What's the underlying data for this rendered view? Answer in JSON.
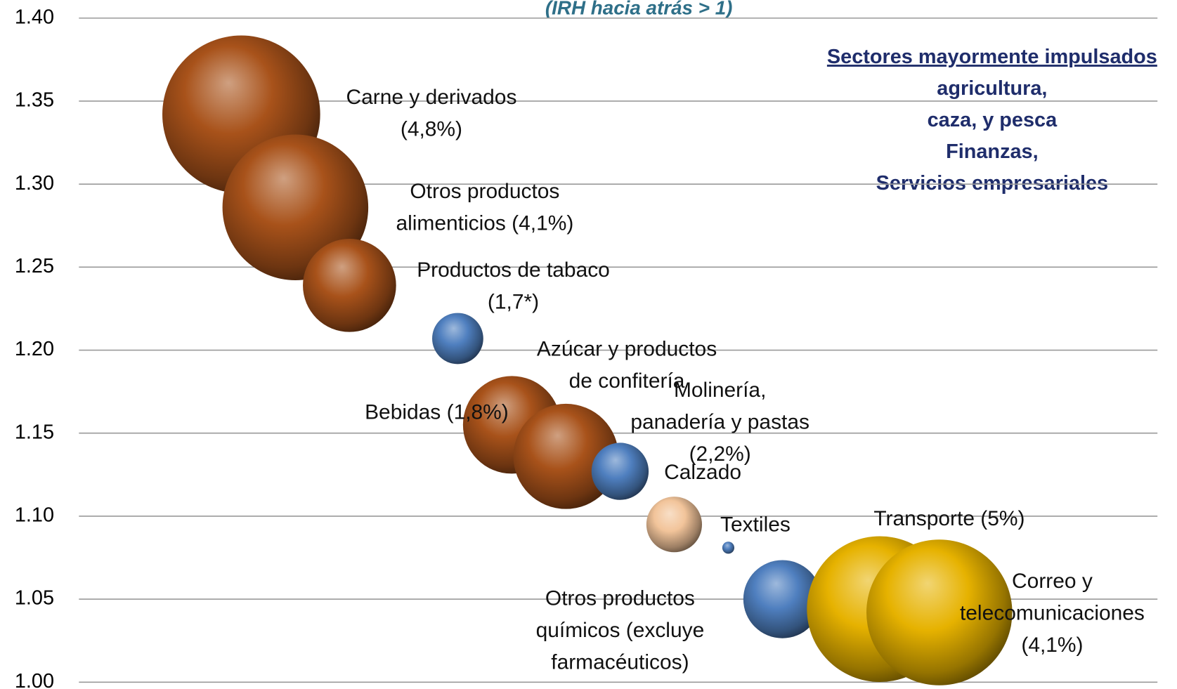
{
  "chart_data": {
    "type": "bubble",
    "subtitle": "(IRH hacia atrás >  1)",
    "annotation": {
      "heading": "Sectores mayormente impulsados",
      "lines": [
        "agricultura,",
        "caza, y pesca",
        "Finanzas,",
        "Servicios empresariales"
      ]
    },
    "xlim": [
      -2,
      18
    ],
    "ylim": [
      1.0,
      1.4
    ],
    "yticks": [
      {
        "value": 1.0,
        "label": "1.00"
      },
      {
        "value": 1.05,
        "label": "1.05"
      },
      {
        "value": 1.1,
        "label": "1.10"
      },
      {
        "value": 1.15,
        "label": "1.15"
      },
      {
        "value": 1.2,
        "label": "1.20"
      },
      {
        "value": 1.25,
        "label": "1.25"
      },
      {
        "value": 1.3,
        "label": "1.30"
      },
      {
        "value": 1.35,
        "label": "1.35"
      },
      {
        "value": 1.4,
        "label": "1.40"
      }
    ],
    "grid": true,
    "points": [
      {
        "label": [
          "Carne y derivados",
          "(4,8%)"
        ],
        "x": 1,
        "y": 1.342,
        "size": 105,
        "color": "#a8521a"
      },
      {
        "label": [
          "Otros productos",
          "alimenticios (4,1%)"
        ],
        "x": 2,
        "y": 1.286,
        "size": 97,
        "color": "#a8521a"
      },
      {
        "label": [
          "Productos de tabaco",
          "(1,7*)"
        ],
        "x": 3,
        "y": 1.239,
        "size": 62,
        "color": "#a8521a"
      },
      {
        "label": null,
        "x": 5,
        "y": 1.207,
        "size": 34,
        "color": "#4f7fbf"
      },
      {
        "label": [
          "Bebidas (1,8%)"
        ],
        "x": 6,
        "y": 1.155,
        "size": 65,
        "color": "#a8521a"
      },
      {
        "label": [
          "Azúcar y productos",
          "de confitería"
        ],
        "x": 7,
        "y": 1.136,
        "size": 70,
        "color": "#a8521a"
      },
      {
        "label": [
          "Molinería,",
          "panadería y pastas",
          "(2,2%)"
        ],
        "x": 8,
        "y": 1.127,
        "size": 38,
        "color": "#4f7fbf"
      },
      {
        "label": [
          "Calzado"
        ],
        "x": 9,
        "y": 1.095,
        "size": 37,
        "color": "#f2c49a"
      },
      {
        "label": [
          "Textiles"
        ],
        "x": 10,
        "y": 1.081,
        "size": 8,
        "color": "#4f7fbf"
      },
      {
        "label": [
          "Otros productos",
          "químicos (excluye",
          "farmacéuticos)"
        ],
        "x": 11,
        "y": 1.05,
        "size": 52,
        "color": "#4f7fbf"
      },
      {
        "label": [
          "Transporte (5%)"
        ],
        "x": 12.8,
        "y": 1.044,
        "size": 97,
        "color": "#e6b200"
      },
      {
        "label": [
          "Correo y",
          "telecomunicaciones",
          "(4,1%)"
        ],
        "x": 13.9,
        "y": 1.042,
        "size": 97,
        "color": "#e6b200"
      }
    ]
  }
}
